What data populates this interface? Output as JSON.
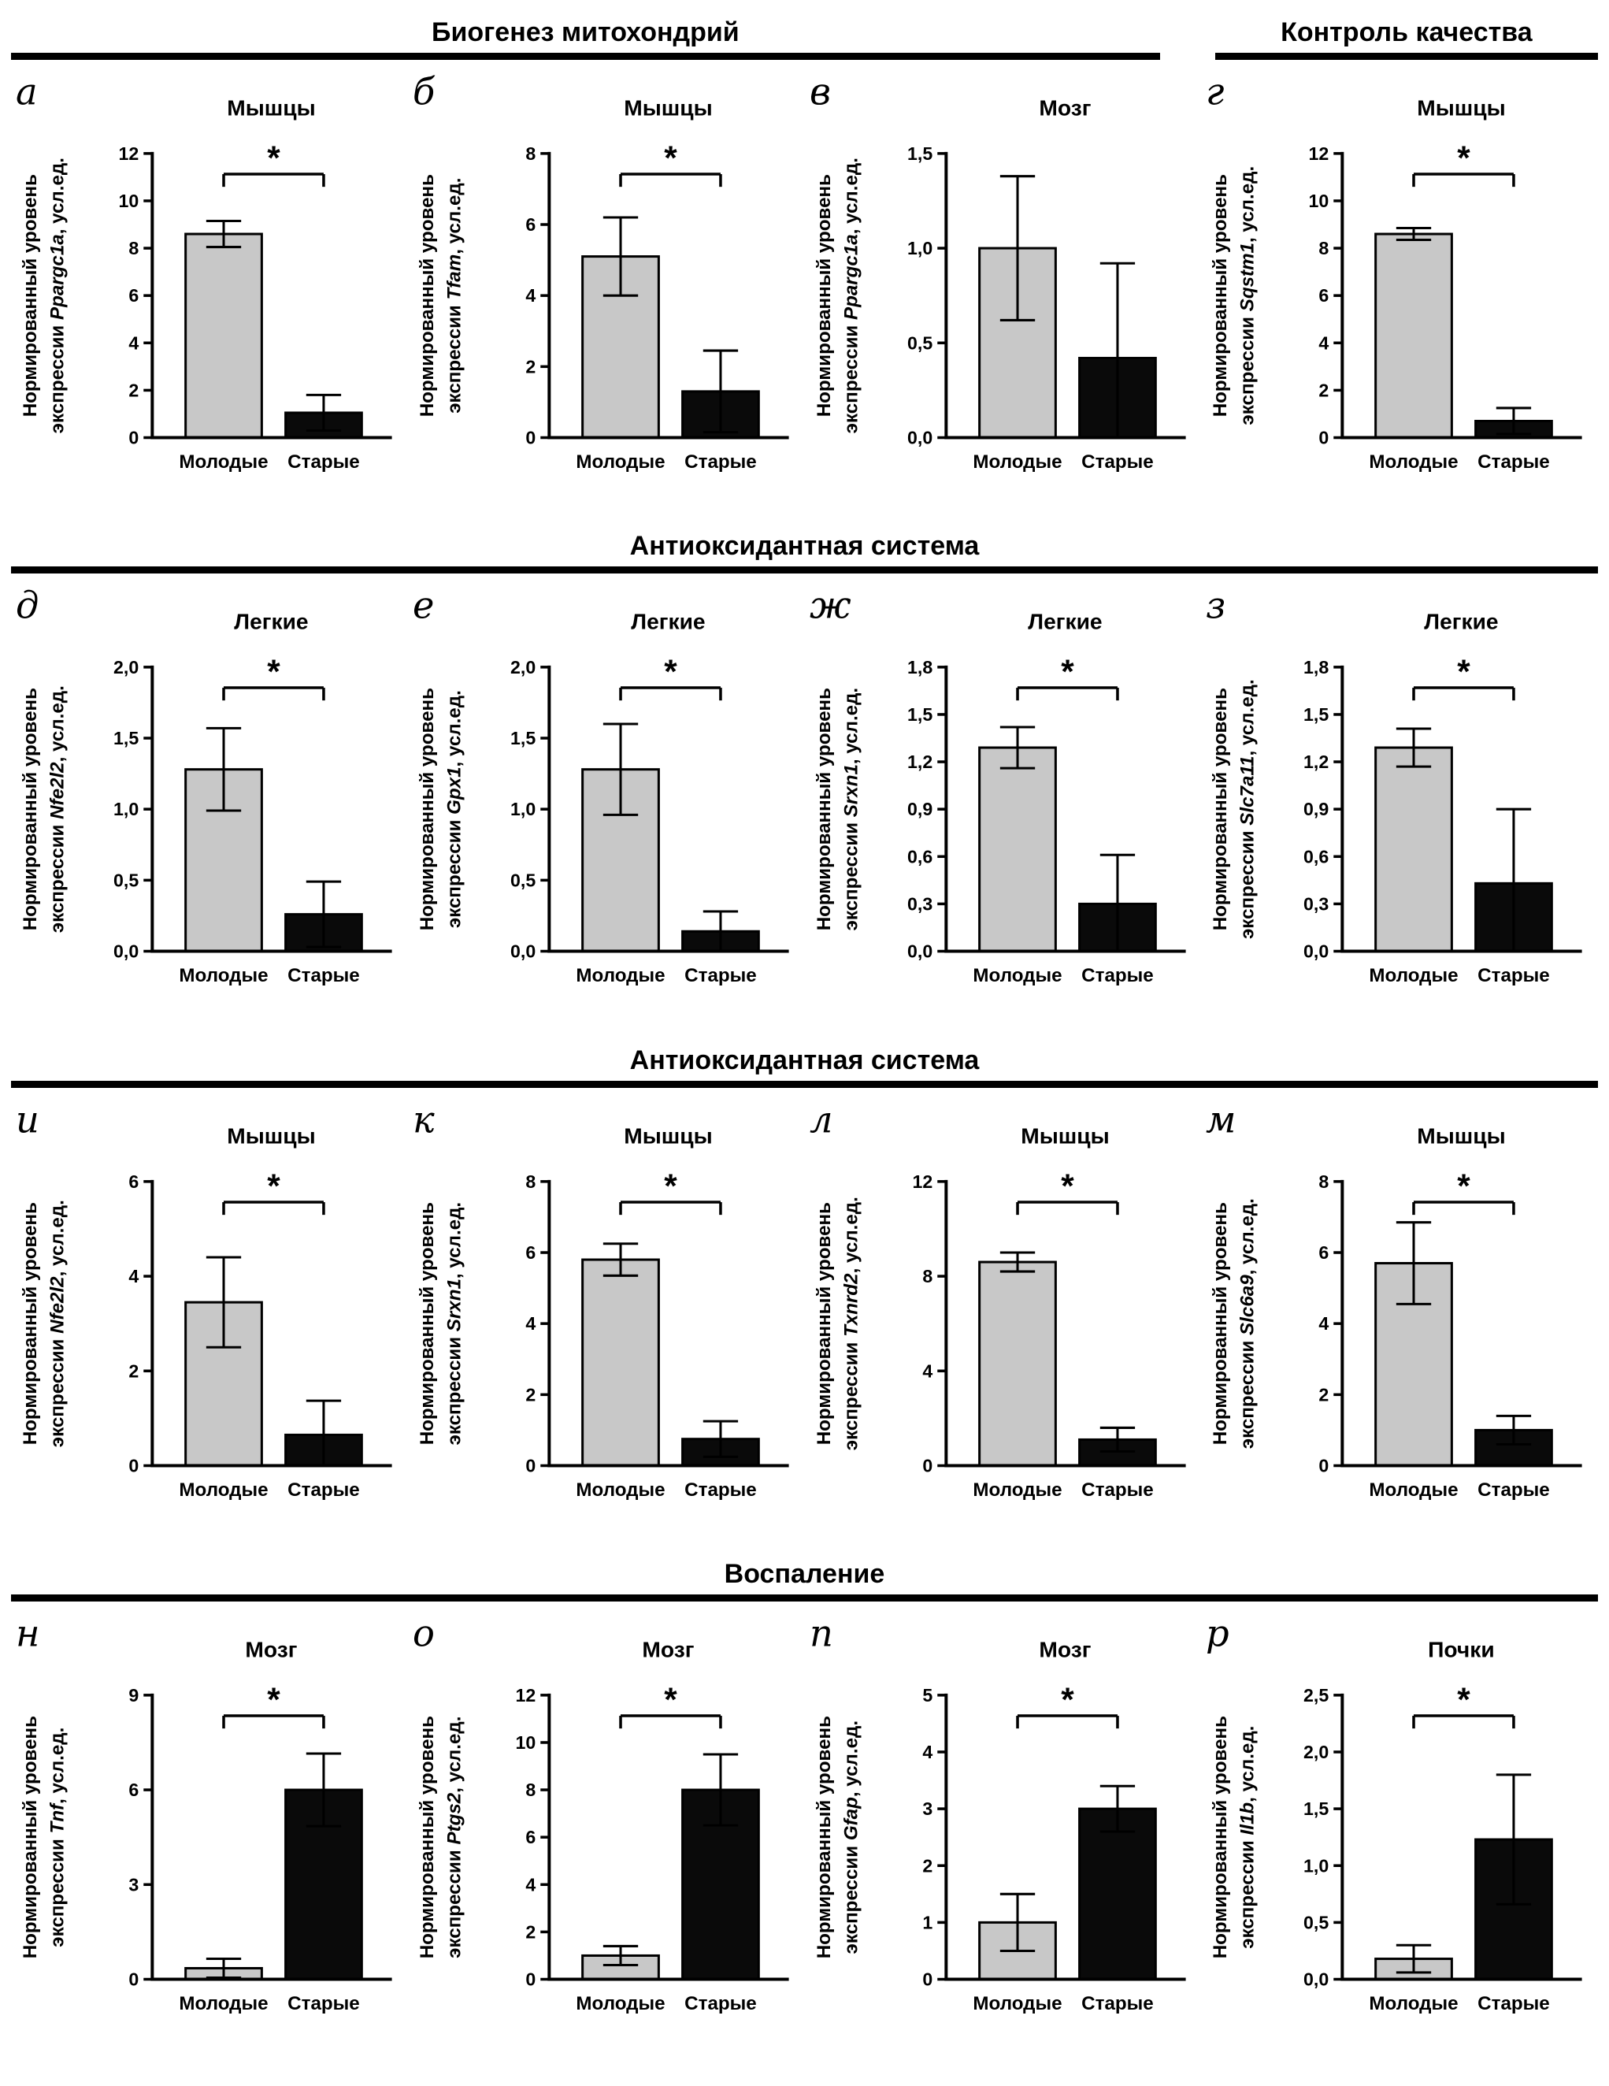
{
  "colors": {
    "young": "#c8c8c8",
    "old": "#0a0a0a",
    "axis": "#000000"
  },
  "groups": [
    "Молодые",
    "Старые"
  ],
  "sections": [
    {
      "titles": [
        {
          "text": "Биогенез митохондрий"
        },
        {
          "text": "Контроль качества"
        }
      ]
    },
    {
      "titles": [
        {
          "text": "Антиоксидантная система"
        }
      ]
    },
    {
      "titles": [
        {
          "text": "Антиоксидантная система"
        }
      ]
    },
    {
      "titles": [
        {
          "text": "Воспаление"
        }
      ]
    }
  ],
  "chart_data": [
    {
      "type": "bar",
      "panel": "а",
      "title": "Мышцы",
      "ylabel_line1": "Нормированный уровень",
      "ylabel_prefix": "экспрессии ",
      "gene": "Ppargc1a",
      "ylabel_suffix": ", усл.ед.",
      "ymax": 12,
      "yticks": [
        "0",
        "2",
        "4",
        "6",
        "8",
        "10",
        "12"
      ],
      "ytick_values": [
        0,
        2,
        4,
        6,
        8,
        10,
        12
      ],
      "categories": [
        "Молодые",
        "Старые"
      ],
      "values": [
        8.6,
        1.05
      ],
      "errors": [
        0.55,
        0.75
      ],
      "significant": true
    },
    {
      "type": "bar",
      "panel": "б",
      "title": "Мышцы",
      "ylabel_line1": "Нормированный уровень",
      "ylabel_prefix": "экспрессии ",
      "gene": "Tfam",
      "ylabel_suffix": ", усл.ед.",
      "ymax": 8,
      "yticks": [
        "0",
        "2",
        "4",
        "6",
        "8"
      ],
      "ytick_values": [
        0,
        2,
        4,
        6,
        8
      ],
      "categories": [
        "Молодые",
        "Старые"
      ],
      "values": [
        5.1,
        1.3
      ],
      "errors": [
        1.1,
        1.15
      ],
      "significant": true
    },
    {
      "type": "bar",
      "panel": "в",
      "title": "Мозг",
      "ylabel_line1": "Нормированный уровень",
      "ylabel_prefix": "экспрессии ",
      "gene": "Ppargc1a",
      "ylabel_suffix": ", усл.ед.",
      "ymax": 1.5,
      "yticks": [
        "0,0",
        "0,5",
        "1,0",
        "1,5"
      ],
      "ytick_values": [
        0,
        0.5,
        1,
        1.5
      ],
      "categories": [
        "Молодые",
        "Старые"
      ],
      "values": [
        1.0,
        0.42
      ],
      "errors": [
        0.38,
        0.5
      ],
      "significant": false
    },
    {
      "type": "bar",
      "panel": "г",
      "title": "Мышцы",
      "ylabel_line1": "Нормированный уровень",
      "ylabel_prefix": "экспрессии ",
      "gene": "Sqstm1",
      "ylabel_suffix": ", усл.ед.",
      "ymax": 12,
      "yticks": [
        "0",
        "2",
        "4",
        "6",
        "8",
        "10",
        "12"
      ],
      "ytick_values": [
        0,
        2,
        4,
        6,
        8,
        10,
        12
      ],
      "categories": [
        "Молодые",
        "Старые"
      ],
      "values": [
        8.6,
        0.7
      ],
      "errors": [
        0.25,
        0.55
      ],
      "significant": true
    },
    {
      "type": "bar",
      "panel": "д",
      "title": "Легкие",
      "ylabel_line1": "Нормированный уровень",
      "ylabel_prefix": "экспрессии ",
      "gene": "Nfe2l2",
      "ylabel_suffix": ", усл.ед.",
      "ymax": 2,
      "yticks": [
        "0,0",
        "0,5",
        "1,0",
        "1,5",
        "2,0"
      ],
      "ytick_values": [
        0,
        0.5,
        1,
        1.5,
        2
      ],
      "categories": [
        "Молодые",
        "Старые"
      ],
      "values": [
        1.28,
        0.26
      ],
      "errors": [
        0.29,
        0.23
      ],
      "significant": true
    },
    {
      "type": "bar",
      "panel": "е",
      "title": "Легкие",
      "ylabel_line1": "Нормированный уровень",
      "ylabel_prefix": "экспрессии ",
      "gene": "Gpx1",
      "ylabel_suffix": ", усл.ед.",
      "ymax": 2,
      "yticks": [
        "0,0",
        "0,5",
        "1,0",
        "1,5",
        "2,0"
      ],
      "ytick_values": [
        0,
        0.5,
        1,
        1.5,
        2
      ],
      "categories": [
        "Молодые",
        "Старые"
      ],
      "values": [
        1.28,
        0.14
      ],
      "errors": [
        0.32,
        0.14
      ],
      "significant": true
    },
    {
      "type": "bar",
      "panel": "ж",
      "title": "Легкие",
      "ylabel_line1": "Нормированный уровень",
      "ylabel_prefix": "экспрессии ",
      "gene": "Srxn1",
      "ylabel_suffix": ", усл.ед.",
      "ymax": 1.8,
      "yticks": [
        "0,0",
        "0,3",
        "0,6",
        "0,9",
        "1,2",
        "1,5",
        "1,8"
      ],
      "ytick_values": [
        0,
        0.3,
        0.6,
        0.9,
        1.2,
        1.5,
        1.8
      ],
      "categories": [
        "Молодые",
        "Старые"
      ],
      "values": [
        1.29,
        0.3
      ],
      "errors": [
        0.13,
        0.31
      ],
      "significant": true
    },
    {
      "type": "bar",
      "panel": "з",
      "title": "Легкие",
      "ylabel_line1": "Нормированный уровень",
      "ylabel_prefix": "экспрессии ",
      "gene": "Slc7a11",
      "ylabel_suffix": ", усл.ед.",
      "ymax": 1.8,
      "yticks": [
        "0,0",
        "0,3",
        "0,6",
        "0,9",
        "1,2",
        "1,5",
        "1,8"
      ],
      "ytick_values": [
        0,
        0.3,
        0.6,
        0.9,
        1.2,
        1.5,
        1.8
      ],
      "categories": [
        "Молодые",
        "Старые"
      ],
      "values": [
        1.29,
        0.43
      ],
      "errors": [
        0.12,
        0.47
      ],
      "significant": true
    },
    {
      "type": "bar",
      "panel": "и",
      "title": "Мышцы",
      "ylabel_line1": "Нормированный уровень",
      "ylabel_prefix": "экспрессии ",
      "gene": "Nfe2l2",
      "ylabel_suffix": ", усл.ед.",
      "ymax": 6,
      "yticks": [
        "0",
        "2",
        "4",
        "6"
      ],
      "ytick_values": [
        0,
        2,
        4,
        6
      ],
      "categories": [
        "Молодые",
        "Старые"
      ],
      "values": [
        3.45,
        0.65
      ],
      "errors": [
        0.95,
        0.72
      ],
      "significant": true
    },
    {
      "type": "bar",
      "panel": "к",
      "title": "Мышцы",
      "ylabel_line1": "Нормированный уровень",
      "ylabel_prefix": "экспрессии ",
      "gene": "Srxn1",
      "ylabel_suffix": ", усл.ед.",
      "ymax": 8,
      "yticks": [
        "0",
        "2",
        "4",
        "6",
        "8"
      ],
      "ytick_values": [
        0,
        2,
        4,
        6,
        8
      ],
      "categories": [
        "Молодые",
        "Старые"
      ],
      "values": [
        5.8,
        0.75
      ],
      "errors": [
        0.45,
        0.5
      ],
      "significant": true
    },
    {
      "type": "bar",
      "panel": "л",
      "title": "Мышцы",
      "ylabel_line1": "Нормированный уровень",
      "ylabel_prefix": "экспрессии ",
      "gene": "Txnrd2",
      "ylabel_suffix": ", усл.ед.",
      "ymax": 12,
      "yticks": [
        "0",
        "4",
        "8",
        "12"
      ],
      "ytick_values": [
        0,
        4,
        8,
        12
      ],
      "categories": [
        "Молодые",
        "Старые"
      ],
      "values": [
        8.6,
        1.1
      ],
      "errors": [
        0.4,
        0.5
      ],
      "significant": true
    },
    {
      "type": "bar",
      "panel": "м",
      "title": "Мышцы",
      "ylabel_line1": "Нормированный уровень",
      "ylabel_prefix": "экспрессии ",
      "gene": "Slc6a9",
      "ylabel_suffix": ", усл.ед.",
      "ymax": 8,
      "yticks": [
        "0",
        "2",
        "4",
        "6",
        "8"
      ],
      "ytick_values": [
        0,
        2,
        4,
        6,
        8
      ],
      "categories": [
        "Молодые",
        "Старые"
      ],
      "values": [
        5.7,
        1.0
      ],
      "errors": [
        1.15,
        0.4
      ],
      "significant": true
    },
    {
      "type": "bar",
      "panel": "н",
      "title": "Мозг",
      "ylabel_line1": "Нормированный уровень",
      "ylabel_prefix": "экспрессии ",
      "gene": "Tnf",
      "ylabel_suffix": ", усл.ед.",
      "ymax": 9,
      "yticks": [
        "0",
        "3",
        "6",
        "9"
      ],
      "ytick_values": [
        0,
        3,
        6,
        9
      ],
      "categories": [
        "Молодые",
        "Старые"
      ],
      "values": [
        0.35,
        6.0
      ],
      "errors": [
        0.3,
        1.15
      ],
      "significant": true
    },
    {
      "type": "bar",
      "panel": "о",
      "title": "Мозг",
      "ylabel_line1": "Нормированный уровень",
      "ylabel_prefix": "экспрессии ",
      "gene": "Ptgs2",
      "ylabel_suffix": ", усл.ед.",
      "ymax": 12,
      "yticks": [
        "0",
        "2",
        "4",
        "6",
        "8",
        "10",
        "12"
      ],
      "ytick_values": [
        0,
        2,
        4,
        6,
        8,
        10,
        12
      ],
      "categories": [
        "Молодые",
        "Старые"
      ],
      "values": [
        1.0,
        8.0
      ],
      "errors": [
        0.4,
        1.5
      ],
      "significant": true
    },
    {
      "type": "bar",
      "panel": "п",
      "title": "Мозг",
      "ylabel_line1": "Нормированный уровень",
      "ylabel_prefix": "экспрессии ",
      "gene": "Gfap",
      "ylabel_suffix": ", усл.ед.",
      "ymax": 5,
      "yticks": [
        "0",
        "1",
        "2",
        "3",
        "4",
        "5"
      ],
      "ytick_values": [
        0,
        1,
        2,
        3,
        4,
        5
      ],
      "categories": [
        "Молодые",
        "Старые"
      ],
      "values": [
        1.0,
        3.0
      ],
      "errors": [
        0.5,
        0.4
      ],
      "significant": true
    },
    {
      "type": "bar",
      "panel": "р",
      "title": "Почки",
      "ylabel_line1": "Нормированный уровень",
      "ylabel_prefix": "экспрессии ",
      "gene": "Il1b",
      "ylabel_suffix": ", усл.ед.",
      "ymax": 2.5,
      "yticks": [
        "0,0",
        "0,5",
        "1,0",
        "1,5",
        "2,0",
        "2,5"
      ],
      "ytick_values": [
        0,
        0.5,
        1,
        1.5,
        2,
        2.5
      ],
      "categories": [
        "Молодые",
        "Старые"
      ],
      "values": [
        0.18,
        1.23
      ],
      "errors": [
        0.12,
        0.57
      ],
      "significant": true
    }
  ]
}
